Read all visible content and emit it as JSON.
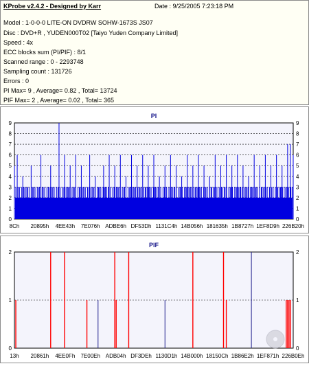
{
  "header": {
    "title": "KProbe v2.4.2 - Designed by Karr",
    "date": "Date : 9/25/2005 7:23:18 PM"
  },
  "info_lines": [
    "Model : 1-0-0-0 LITE-ON DVDRW SOHW-1673S JS07",
    "Disc : DVD+R , YUDEN000T02 [Taiyo Yuden Company Limited]",
    "Speed : 4x",
    "ECC blocks sum (PI/PIF) : 8/1",
    "Scanned range : 0 - 2293748",
    "Sampling count : 131726",
    "Errors : 0",
    "PI Max= 9 , Average= 0.82 , Total= 13724",
    "PIF Max= 2 , Average= 0.02 , Total= 365"
  ],
  "colors": {
    "pi_bar": "#0000e0",
    "pif_red": "#ff0000",
    "pif_blue": "#1e1e8c",
    "grid": "#000000",
    "plot_bg": "#f4f4fc"
  },
  "chart_data": [
    {
      "type": "bar",
      "title": "PI",
      "ylim": [
        0,
        9
      ],
      "yticks": [
        "0",
        "1",
        "2",
        "3",
        "4",
        "5",
        "6",
        "7",
        "8",
        "9"
      ],
      "x_ticks": [
        "8Ch",
        "20895h",
        "4EE43h",
        "7E076h",
        "ADBE6h",
        "DF53Dh",
        "1131C4h",
        "14B056h",
        "181635h",
        "1B8727h",
        "1EF8D9h",
        "226B20h"
      ],
      "grid": true,
      "baseline_band": [
        2,
        3
      ],
      "spikes": [
        {
          "x": 0.0,
          "y": 5
        },
        {
          "x": 0.01,
          "y": 6
        },
        {
          "x": 0.03,
          "y": 4
        },
        {
          "x": 0.06,
          "y": 5
        },
        {
          "x": 0.095,
          "y": 6
        },
        {
          "x": 0.13,
          "y": 5
        },
        {
          "x": 0.16,
          "y": 9
        },
        {
          "x": 0.18,
          "y": 6
        },
        {
          "x": 0.2,
          "y": 5
        },
        {
          "x": 0.22,
          "y": 6
        },
        {
          "x": 0.24,
          "y": 5
        },
        {
          "x": 0.27,
          "y": 6
        },
        {
          "x": 0.29,
          "y": 4
        },
        {
          "x": 0.32,
          "y": 5
        },
        {
          "x": 0.34,
          "y": 6
        },
        {
          "x": 0.36,
          "y": 5
        },
        {
          "x": 0.38,
          "y": 6
        },
        {
          "x": 0.4,
          "y": 4
        },
        {
          "x": 0.42,
          "y": 6
        },
        {
          "x": 0.44,
          "y": 5
        },
        {
          "x": 0.46,
          "y": 6
        },
        {
          "x": 0.48,
          "y": 5
        },
        {
          "x": 0.5,
          "y": 6
        },
        {
          "x": 0.52,
          "y": 4
        },
        {
          "x": 0.54,
          "y": 5
        },
        {
          "x": 0.56,
          "y": 6
        },
        {
          "x": 0.58,
          "y": 5
        },
        {
          "x": 0.6,
          "y": 4
        },
        {
          "x": 0.62,
          "y": 6
        },
        {
          "x": 0.64,
          "y": 5
        },
        {
          "x": 0.66,
          "y": 6
        },
        {
          "x": 0.68,
          "y": 5
        },
        {
          "x": 0.7,
          "y": 4
        },
        {
          "x": 0.72,
          "y": 6
        },
        {
          "x": 0.74,
          "y": 5
        },
        {
          "x": 0.76,
          "y": 6
        },
        {
          "x": 0.78,
          "y": 5
        },
        {
          "x": 0.8,
          "y": 6
        },
        {
          "x": 0.82,
          "y": 5
        },
        {
          "x": 0.84,
          "y": 4
        },
        {
          "x": 0.86,
          "y": 6
        },
        {
          "x": 0.88,
          "y": 5
        },
        {
          "x": 0.9,
          "y": 6
        },
        {
          "x": 0.92,
          "y": 5
        },
        {
          "x": 0.94,
          "y": 6
        },
        {
          "x": 0.96,
          "y": 5
        },
        {
          "x": 0.98,
          "y": 7
        },
        {
          "x": 0.99,
          "y": 7
        },
        {
          "x": 1.0,
          "y": 6
        }
      ]
    },
    {
      "type": "bar",
      "title": "PIF",
      "ylim": [
        0,
        2
      ],
      "yticks": [
        "0",
        "1",
        "2"
      ],
      "x_ticks": [
        "13h",
        "20861h",
        "4EE0Fh",
        "7E00Eh",
        "ADB04h",
        "DF3DEh",
        "1130D1h",
        "14B000h",
        "18150Ch",
        "1B86E2h",
        "1EF871h",
        "226B0Eh"
      ],
      "grid": true,
      "marks": [
        {
          "x": 0.005,
          "y": 1,
          "color": "red"
        },
        {
          "x": 0.13,
          "y": 2,
          "color": "red"
        },
        {
          "x": 0.18,
          "y": 2,
          "color": "red"
        },
        {
          "x": 0.26,
          "y": 1,
          "color": "red"
        },
        {
          "x": 0.3,
          "y": 1,
          "color": "blue"
        },
        {
          "x": 0.36,
          "y": 2,
          "color": "red"
        },
        {
          "x": 0.365,
          "y": 1,
          "color": "red"
        },
        {
          "x": 0.41,
          "y": 2,
          "color": "red"
        },
        {
          "x": 0.54,
          "y": 1,
          "color": "blue"
        },
        {
          "x": 0.64,
          "y": 2,
          "color": "red"
        },
        {
          "x": 0.75,
          "y": 2,
          "color": "red"
        },
        {
          "x": 0.76,
          "y": 1,
          "color": "red"
        },
        {
          "x": 0.85,
          "y": 2,
          "color": "blue"
        },
        {
          "x": 0.975,
          "y": 1,
          "color": "red"
        },
        {
          "x": 0.98,
          "y": 1,
          "color": "red"
        },
        {
          "x": 0.985,
          "y": 1,
          "color": "red"
        },
        {
          "x": 0.99,
          "y": 1,
          "color": "red"
        }
      ]
    }
  ]
}
